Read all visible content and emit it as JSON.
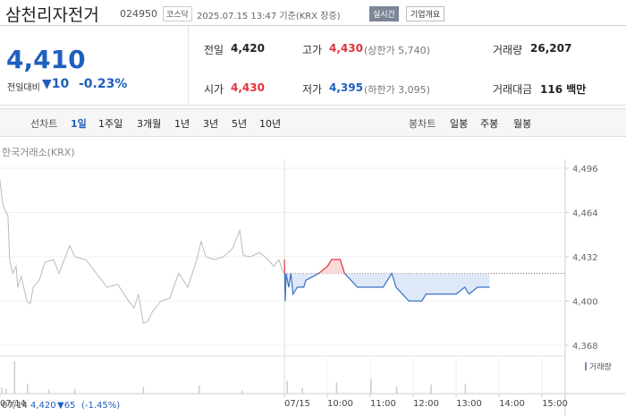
{
  "header": {
    "name": "삼천리자전거",
    "code": "024950",
    "market": "코스닥",
    "time": "2025.07.15 13:47 기준(KRX 장중)",
    "realtime": "실시간",
    "company": "기업개요"
  },
  "quote": {
    "price": "4,410",
    "change_label": "전일대비",
    "change": "▼10",
    "change_pct": "-0.23%",
    "cells": [
      [
        "전일",
        "4,420",
        null
      ],
      [
        "고가",
        "4,430",
        "(상한가 5,740)"
      ],
      [
        "거래량",
        "26,207",
        null
      ],
      [
        "시가",
        "4,430",
        null
      ],
      [
        "저가",
        "4,395",
        "(하한가 3,095)"
      ],
      [
        "거래대금",
        "116 백만",
        null
      ]
    ]
  },
  "tabs": {
    "line_label": "선차트",
    "line": [
      "1일",
      "1주일",
      "3개월",
      "1년",
      "3년",
      "5년",
      "10년"
    ],
    "candle_label": "봉차트",
    "candle": [
      "일봉",
      "주봉",
      "월봉"
    ]
  },
  "chart_data": {
    "type": "line",
    "subtitle": "한국거래소(KRX)",
    "xlim": [
      -6.625,
      6.54
    ],
    "xticks": [
      {
        "value": -6.625,
        "label": "07/14"
      },
      {
        "value": 0,
        "label": "07/15"
      },
      {
        "value": 1,
        "label": "10:00"
      },
      {
        "value": 2,
        "label": "11:00"
      },
      {
        "value": 3,
        "label": "12:00"
      },
      {
        "value": 4,
        "label": "13:00"
      },
      {
        "value": 5,
        "label": "14:00"
      },
      {
        "value": 6,
        "label": "15:00"
      }
    ],
    "ylim": [
      4368,
      4496
    ],
    "yticks": [
      {
        "value": 4368,
        "label": "4,368"
      },
      {
        "value": 4400,
        "label": "4,400"
      },
      {
        "value": 4432,
        "label": "4,432"
      },
      {
        "value": 4464,
        "label": "4,464"
      },
      {
        "value": 4496,
        "label": "4,496"
      }
    ],
    "baseline": 4420,
    "grid": true,
    "series": [
      {
        "name": "07/14",
        "color": "#bbbbbb",
        "x": [
          -6.63,
          -6.56,
          -6.5,
          -6.44,
          -6.4,
          -6.33,
          -6.25,
          -6.21,
          -6.13,
          -6.0,
          -5.92,
          -5.85,
          -5.71,
          -5.58,
          -5.38,
          -5.25,
          -5.13,
          -5.0,
          -4.88,
          -4.63,
          -4.38,
          -4.13,
          -3.88,
          -3.63,
          -3.5,
          -3.4,
          -3.29,
          -3.19,
          -3.08,
          -2.88,
          -2.67,
          -2.56,
          -2.46,
          -2.25,
          -2.04,
          -1.94,
          -1.83,
          -1.63,
          -1.42,
          -1.21,
          -1.04,
          -0.96,
          -0.79,
          -0.58,
          -0.38,
          -0.25,
          -0.13,
          -0.02
        ],
        "values": [
          4488,
          4470,
          4465,
          4462,
          4430,
          4420,
          4425,
          4410,
          4418,
          4400,
          4398,
          4410,
          4415,
          4428,
          4430,
          4420,
          4430,
          4440,
          4432,
          4430,
          4420,
          4410,
          4412,
          4400,
          4395,
          4405,
          4384,
          4385,
          4392,
          4400,
          4402,
          4412,
          4420,
          4410,
          4430,
          4443,
          4432,
          4430,
          4432,
          4438,
          4451,
          4433,
          4432,
          4435,
          4430,
          4425,
          4430,
          4420
        ]
      },
      {
        "name": "07/15",
        "color": "#3a6fc4",
        "up_color": "#e0333a",
        "x": [
          0,
          0.02,
          0.04,
          0.1,
          0.15,
          0.2,
          0.3,
          0.45,
          0.5,
          0.8,
          1.0,
          1.1,
          1.3,
          1.4,
          1.7,
          2.3,
          2.5,
          2.6,
          2.9,
          3.2,
          3.3,
          4.0,
          4.2,
          4.3,
          4.5,
          4.78
        ],
        "values": [
          4430,
          4400,
          4420,
          4410,
          4420,
          4405,
          4410,
          4410,
          4415,
          4420,
          4425,
          4430,
          4430,
          4420,
          4410,
          4410,
          4420,
          4410,
          4400,
          4400,
          4405,
          4405,
          4410,
          4405,
          4410,
          4410
        ]
      },
      {
        "name": "거래량",
        "color": "#cccccc",
        "x": [
          -6.6,
          -6.5,
          -6.3,
          -6.0,
          -5.5,
          -4.9,
          -3.3,
          -2.0,
          -1.0,
          0.05,
          0.4,
          1.2,
          2.0,
          2.6,
          3.4,
          4.2
        ],
        "values": [
          20,
          15,
          100,
          30,
          12,
          15,
          20,
          25,
          10,
          40,
          18,
          35,
          45,
          22,
          28,
          30
        ]
      }
    ],
    "footer": {
      "date": "07/14",
      "price": "4,420",
      "change": "▼65",
      "pct": "(-1.45%)"
    }
  }
}
